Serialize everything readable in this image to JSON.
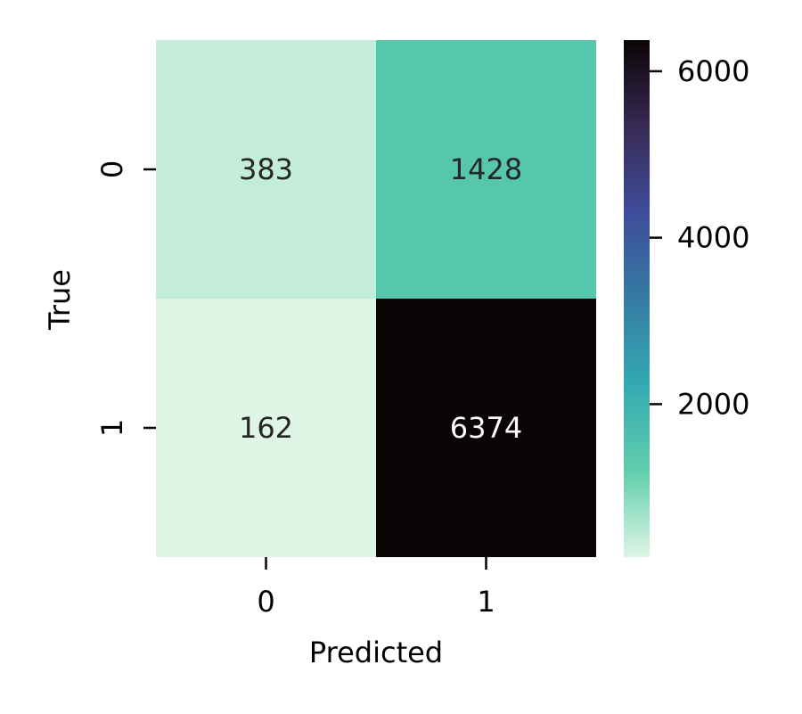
{
  "chart_data": {
    "type": "heatmap",
    "title": "",
    "xlabel": "Predicted",
    "ylabel": "True",
    "x_categories": [
      "0",
      "1"
    ],
    "y_categories": [
      "0",
      "1"
    ],
    "values": [
      [
        383,
        1428
      ],
      [
        162,
        6374
      ]
    ],
    "annotation_colors": [
      [
        "#262626",
        "#262626"
      ],
      [
        "#262626",
        "#ffffff"
      ]
    ],
    "colormap": "mako_r",
    "colorbar": {
      "min": 162,
      "max": 6374,
      "ticks": [
        2000,
        4000,
        6000
      ],
      "tick_labels": [
        "2000",
        "4000",
        "6000"
      ],
      "colors": [
        "#def5e5",
        "#60ceac",
        "#34a9b2",
        "#357ba3",
        "#3e4c9a",
        "#382a54",
        "#0b0405"
      ],
      "placement": "right"
    },
    "legend": "none",
    "grid": false
  }
}
